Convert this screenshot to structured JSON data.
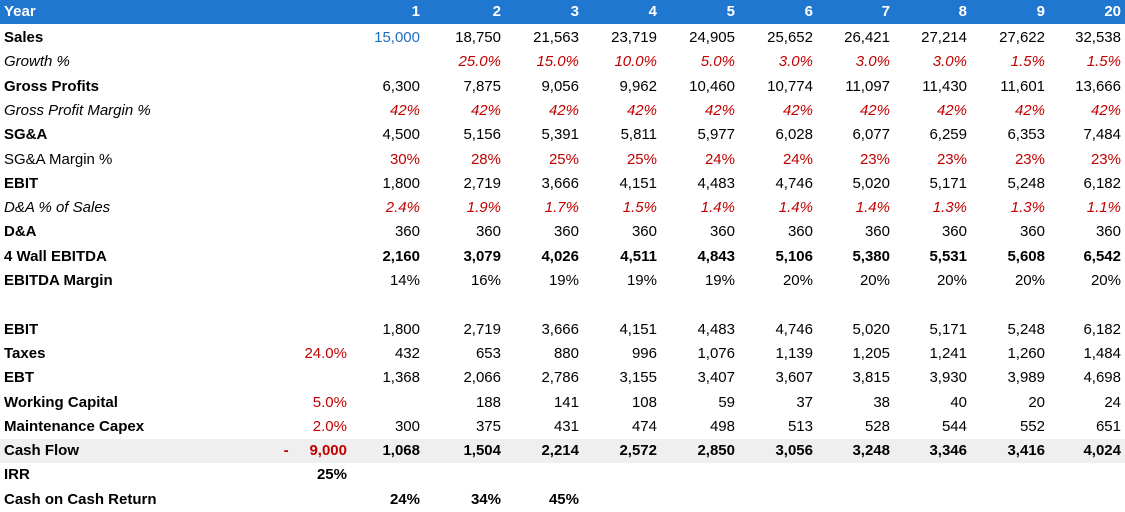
{
  "header": {
    "label": "Year",
    "years": [
      "1",
      "2",
      "3",
      "4",
      "5",
      "6",
      "7",
      "8",
      "9",
      "20"
    ]
  },
  "rows": [
    {
      "label": "Sales",
      "lc": "",
      "values": [
        "15,000",
        "18,750",
        "21,563",
        "23,719",
        "24,905",
        "25,652",
        "26,421",
        "27,214",
        "27,622",
        "32,538"
      ],
      "bold_label": true,
      "italic": false,
      "value_color": "black",
      "first_color": "blue",
      "bold_values": false
    },
    {
      "label": "Growth %",
      "lc": "",
      "values": [
        "",
        "25.0%",
        "15.0%",
        "10.0%",
        "5.0%",
        "3.0%",
        "3.0%",
        "3.0%",
        "1.5%",
        "1.5%"
      ],
      "bold_label": false,
      "italic": true,
      "value_color": "red",
      "bold_values": false
    },
    {
      "label": "Gross Profits",
      "lc": "",
      "values": [
        "6,300",
        "7,875",
        "9,056",
        "9,962",
        "10,460",
        "10,774",
        "11,097",
        "11,430",
        "11,601",
        "13,666"
      ],
      "bold_label": true,
      "italic": false,
      "value_color": "black",
      "bold_values": false
    },
    {
      "label": "Gross Profit Margin %",
      "lc": "",
      "values": [
        "42%",
        "42%",
        "42%",
        "42%",
        "42%",
        "42%",
        "42%",
        "42%",
        "42%",
        "42%"
      ],
      "bold_label": false,
      "italic": true,
      "value_color": "red",
      "bold_values": false
    },
    {
      "label": "SG&A",
      "lc": "",
      "values": [
        "4,500",
        "5,156",
        "5,391",
        "5,811",
        "5,977",
        "6,028",
        "6,077",
        "6,259",
        "6,353",
        "7,484"
      ],
      "bold_label": true,
      "italic": false,
      "value_color": "black",
      "bold_values": false
    },
    {
      "label": "SG&A Margin %",
      "lc": "",
      "values": [
        "30%",
        "28%",
        "25%",
        "25%",
        "24%",
        "24%",
        "23%",
        "23%",
        "23%",
        "23%"
      ],
      "bold_label": false,
      "italic": false,
      "value_color": "red",
      "bold_values": false
    },
    {
      "label": "EBIT",
      "lc": "",
      "values": [
        "1,800",
        "2,719",
        "3,666",
        "4,151",
        "4,483",
        "4,746",
        "5,020",
        "5,171",
        "5,248",
        "6,182"
      ],
      "bold_label": true,
      "italic": false,
      "value_color": "black",
      "bold_values": false
    },
    {
      "label": "D&A % of Sales",
      "lc": "",
      "values": [
        "2.4%",
        "1.9%",
        "1.7%",
        "1.5%",
        "1.4%",
        "1.4%",
        "1.4%",
        "1.3%",
        "1.3%",
        "1.1%"
      ],
      "bold_label": false,
      "italic": true,
      "value_color": "red",
      "bold_values": false
    },
    {
      "label": "D&A",
      "lc": "",
      "values": [
        "360",
        "360",
        "360",
        "360",
        "360",
        "360",
        "360",
        "360",
        "360",
        "360"
      ],
      "bold_label": true,
      "italic": false,
      "value_color": "black",
      "bold_values": false
    },
    {
      "label": "4 Wall EBITDA",
      "lc": "",
      "values": [
        "2,160",
        "3,079",
        "4,026",
        "4,511",
        "4,843",
        "5,106",
        "5,380",
        "5,531",
        "5,608",
        "6,542"
      ],
      "bold_label": true,
      "italic": false,
      "value_color": "black",
      "bold_values": true
    },
    {
      "label": "EBITDA Margin",
      "lc": "",
      "values": [
        "14%",
        "16%",
        "19%",
        "19%",
        "19%",
        "20%",
        "20%",
        "20%",
        "20%",
        "20%"
      ],
      "bold_label": true,
      "italic": false,
      "value_color": "black",
      "bold_values": false
    },
    {
      "label": "",
      "lc": "",
      "values": [
        "",
        "",
        "",
        "",
        "",
        "",
        "",
        "",
        "",
        ""
      ],
      "bold_label": false,
      "italic": false,
      "value_color": "black",
      "bold_values": false
    },
    {
      "label": "EBIT",
      "lc": "",
      "values": [
        "1,800",
        "2,719",
        "3,666",
        "4,151",
        "4,483",
        "4,746",
        "5,020",
        "5,171",
        "5,248",
        "6,182"
      ],
      "bold_label": true,
      "italic": false,
      "value_color": "black",
      "bold_values": false
    },
    {
      "label": "Taxes",
      "lc": "24.0%",
      "lc_color": "red",
      "values": [
        "432",
        "653",
        "880",
        "996",
        "1,076",
        "1,139",
        "1,205",
        "1,241",
        "1,260",
        "1,484"
      ],
      "bold_label": true,
      "italic": false,
      "value_color": "black",
      "bold_values": false
    },
    {
      "label": "EBT",
      "lc": "",
      "values": [
        "1,368",
        "2,066",
        "2,786",
        "3,155",
        "3,407",
        "3,607",
        "3,815",
        "3,930",
        "3,989",
        "4,698"
      ],
      "bold_label": true,
      "italic": false,
      "value_color": "black",
      "bold_values": false
    },
    {
      "label": "Working Capital",
      "lc": "5.0%",
      "lc_color": "red",
      "values": [
        "",
        "188",
        "141",
        "108",
        "59",
        "37",
        "38",
        "40",
        "20",
        "24"
      ],
      "bold_label": true,
      "italic": false,
      "value_color": "black",
      "bold_values": false
    },
    {
      "label": "Maintenance Capex",
      "lc": "2.0%",
      "lc_color": "red",
      "values": [
        "300",
        "375",
        "431",
        "474",
        "498",
        "513",
        "528",
        "544",
        "552",
        "651"
      ],
      "bold_label": true,
      "italic": false,
      "value_color": "black",
      "bold_values": false
    },
    {
      "label": "Cash Flow",
      "lc": "-     9,000",
      "lc_color": "red",
      "lc_bold": true,
      "values": [
        "1,068",
        "1,504",
        "2,214",
        "2,572",
        "2,850",
        "3,056",
        "3,248",
        "3,346",
        "3,416",
        "4,024"
      ],
      "bold_label": true,
      "italic": false,
      "value_color": "black",
      "bold_values": true,
      "shade": true
    },
    {
      "label": "IRR",
      "lc": "25%",
      "lc_color": "black",
      "lc_bold": true,
      "values": [
        "",
        "",
        "",
        "",
        "",
        "",
        "",
        "",
        "",
        ""
      ],
      "bold_label": true,
      "italic": false,
      "value_color": "black",
      "bold_values": false
    },
    {
      "label": "Cash on Cash Return",
      "lc": "",
      "values": [
        "24%",
        "34%",
        "45%",
        "",
        "",
        "",
        "",
        "",
        "",
        ""
      ],
      "bold_label": true,
      "italic": false,
      "value_color": "black",
      "bold_values": true
    }
  ]
}
